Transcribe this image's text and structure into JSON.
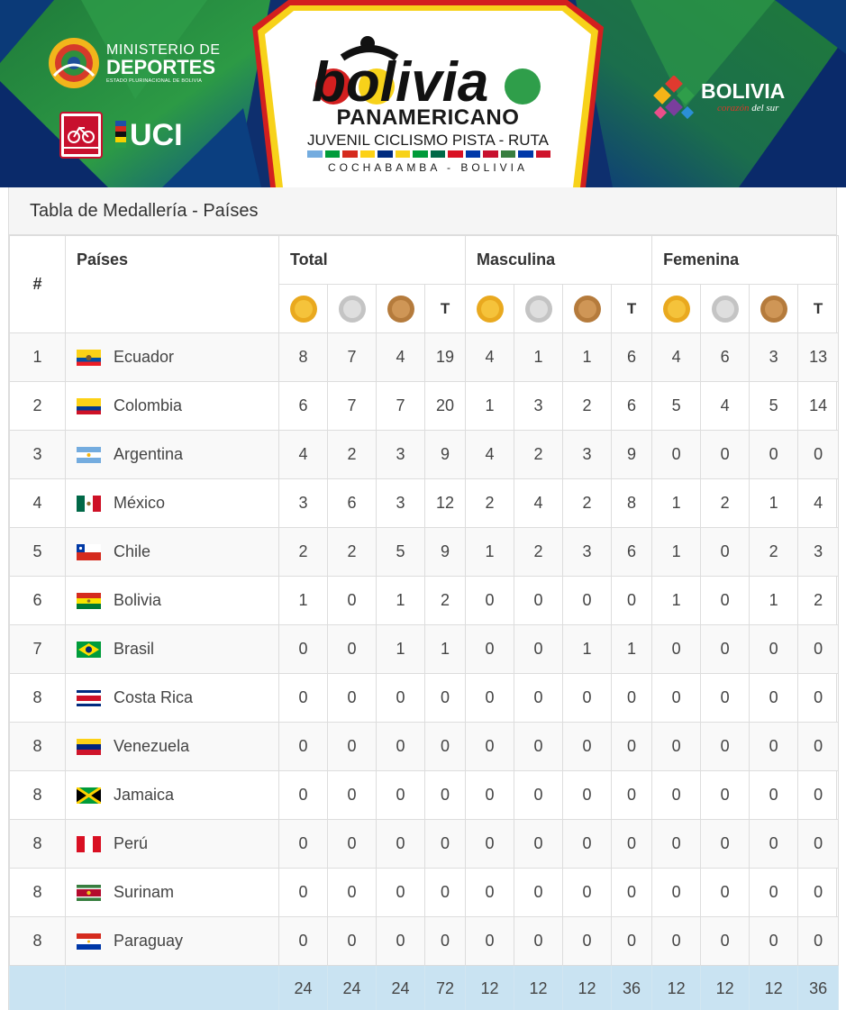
{
  "banner": {
    "ministerio": {
      "line1": "MINISTERIO DE",
      "line2": "DEPORTES",
      "line3": "ESTADO PLURINACIONAL DE BOLIVIA"
    },
    "uci_text": "UCI",
    "event_title": "bolivia",
    "subtitle1": "PANAMERICANO",
    "subtitle2": "JUVENIL CICLISMO PISTA - RUTA",
    "subtitle3": "COCHABAMBA - BOLIVIA",
    "brand": {
      "name": "BOLIVIA",
      "tagline_a": "corazón",
      "tagline_b": "del sur"
    }
  },
  "panel": {
    "heading": "Tabla de Medallería - Países"
  },
  "table": {
    "headers": {
      "rank": "#",
      "country": "Países",
      "total": "Total",
      "masculina": "Masculina",
      "femenina": "Femenina",
      "t": "T"
    },
    "rows": [
      {
        "rank": "1",
        "country": "Ecuador",
        "flag": "ecuador",
        "total": [
          "8",
          "7",
          "4",
          "19"
        ],
        "masc": [
          "4",
          "1",
          "1",
          "6"
        ],
        "fem": [
          "4",
          "6",
          "3",
          "13"
        ]
      },
      {
        "rank": "2",
        "country": "Colombia",
        "flag": "colombia",
        "total": [
          "6",
          "7",
          "7",
          "20"
        ],
        "masc": [
          "1",
          "3",
          "2",
          "6"
        ],
        "fem": [
          "5",
          "4",
          "5",
          "14"
        ]
      },
      {
        "rank": "3",
        "country": "Argentina",
        "flag": "argentina",
        "total": [
          "4",
          "2",
          "3",
          "9"
        ],
        "masc": [
          "4",
          "2",
          "3",
          "9"
        ],
        "fem": [
          "0",
          "0",
          "0",
          "0"
        ]
      },
      {
        "rank": "4",
        "country": "México",
        "flag": "mexico",
        "total": [
          "3",
          "6",
          "3",
          "12"
        ],
        "masc": [
          "2",
          "4",
          "2",
          "8"
        ],
        "fem": [
          "1",
          "2",
          "1",
          "4"
        ]
      },
      {
        "rank": "5",
        "country": "Chile",
        "flag": "chile",
        "total": [
          "2",
          "2",
          "5",
          "9"
        ],
        "masc": [
          "1",
          "2",
          "3",
          "6"
        ],
        "fem": [
          "1",
          "0",
          "2",
          "3"
        ]
      },
      {
        "rank": "6",
        "country": "Bolivia",
        "flag": "bolivia",
        "total": [
          "1",
          "0",
          "1",
          "2"
        ],
        "masc": [
          "0",
          "0",
          "0",
          "0"
        ],
        "fem": [
          "1",
          "0",
          "1",
          "2"
        ]
      },
      {
        "rank": "7",
        "country": "Brasil",
        "flag": "brasil",
        "total": [
          "0",
          "0",
          "1",
          "1"
        ],
        "masc": [
          "0",
          "0",
          "1",
          "1"
        ],
        "fem": [
          "0",
          "0",
          "0",
          "0"
        ]
      },
      {
        "rank": "8",
        "country": "Costa Rica",
        "flag": "costa-rica",
        "total": [
          "0",
          "0",
          "0",
          "0"
        ],
        "masc": [
          "0",
          "0",
          "0",
          "0"
        ],
        "fem": [
          "0",
          "0",
          "0",
          "0"
        ]
      },
      {
        "rank": "8",
        "country": "Venezuela",
        "flag": "venezuela",
        "total": [
          "0",
          "0",
          "0",
          "0"
        ],
        "masc": [
          "0",
          "0",
          "0",
          "0"
        ],
        "fem": [
          "0",
          "0",
          "0",
          "0"
        ]
      },
      {
        "rank": "8",
        "country": "Jamaica",
        "flag": "jamaica",
        "total": [
          "0",
          "0",
          "0",
          "0"
        ],
        "masc": [
          "0",
          "0",
          "0",
          "0"
        ],
        "fem": [
          "0",
          "0",
          "0",
          "0"
        ]
      },
      {
        "rank": "8",
        "country": "Perú",
        "flag": "peru",
        "total": [
          "0",
          "0",
          "0",
          "0"
        ],
        "masc": [
          "0",
          "0",
          "0",
          "0"
        ],
        "fem": [
          "0",
          "0",
          "0",
          "0"
        ]
      },
      {
        "rank": "8",
        "country": "Surinam",
        "flag": "surinam",
        "total": [
          "0",
          "0",
          "0",
          "0"
        ],
        "masc": [
          "0",
          "0",
          "0",
          "0"
        ],
        "fem": [
          "0",
          "0",
          "0",
          "0"
        ]
      },
      {
        "rank": "8",
        "country": "Paraguay",
        "flag": "paraguay",
        "total": [
          "0",
          "0",
          "0",
          "0"
        ],
        "masc": [
          "0",
          "0",
          "0",
          "0"
        ],
        "fem": [
          "0",
          "0",
          "0",
          "0"
        ]
      }
    ],
    "footer": {
      "total": [
        "24",
        "24",
        "24",
        "72"
      ],
      "masc": [
        "12",
        "12",
        "12",
        "36"
      ],
      "fem": [
        "12",
        "12",
        "12",
        "36"
      ]
    }
  },
  "colors": {
    "gold": "#f5c33b",
    "silver": "#dedede",
    "bronze": "#cf9656",
    "footer_bg": "#c9e3f2",
    "heading_bg": "#f5f5f5"
  }
}
